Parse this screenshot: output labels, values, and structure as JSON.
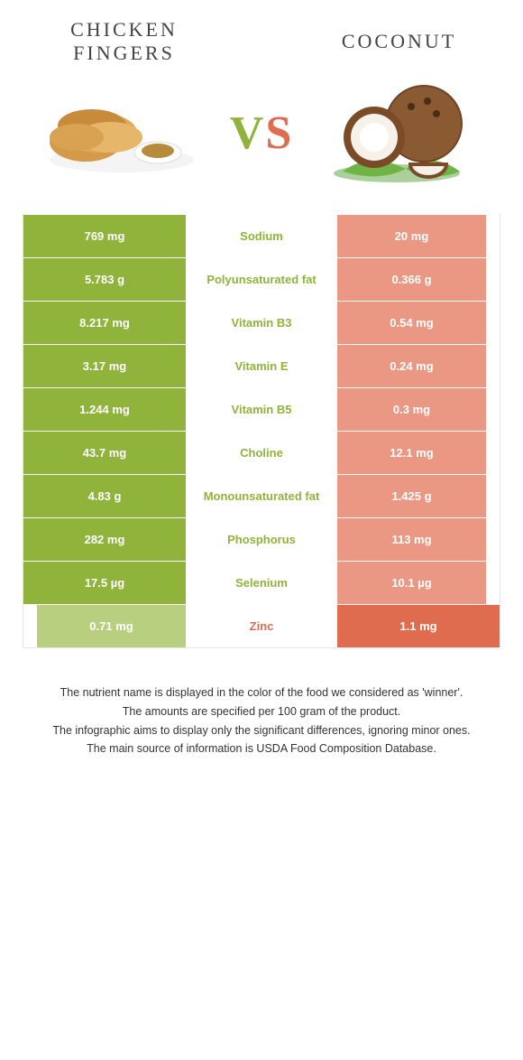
{
  "colors": {
    "green": "#8fb33b",
    "green_light": "#b7cf7f",
    "orange": "#e06c4f",
    "orange_light": "#ea9884"
  },
  "left_title": "Chicken fingers",
  "right_title": "Coconut",
  "vs_text": "VS",
  "rows": [
    {
      "nutrient": "Sodium",
      "left": "769 mg",
      "right": "20 mg",
      "winner": "left"
    },
    {
      "nutrient": "Polyunsaturated fat",
      "left": "5.783 g",
      "right": "0.366 g",
      "winner": "left"
    },
    {
      "nutrient": "Vitamin B3",
      "left": "8.217 mg",
      "right": "0.54 mg",
      "winner": "left"
    },
    {
      "nutrient": "Vitamin E",
      "left": "3.17 mg",
      "right": "0.24 mg",
      "winner": "left"
    },
    {
      "nutrient": "Vitamin B5",
      "left": "1.244 mg",
      "right": "0.3 mg",
      "winner": "left"
    },
    {
      "nutrient": "Choline",
      "left": "43.7 mg",
      "right": "12.1 mg",
      "winner": "left"
    },
    {
      "nutrient": "Monounsaturated fat",
      "left": "4.83 g",
      "right": "1.425 g",
      "winner": "left"
    },
    {
      "nutrient": "Phosphorus",
      "left": "282 mg",
      "right": "113 mg",
      "winner": "left"
    },
    {
      "nutrient": "Selenium",
      "left": "17.5 µg",
      "right": "10.1 µg",
      "winner": "left"
    },
    {
      "nutrient": "Zinc",
      "left": "0.71 mg",
      "right": "1.1 mg",
      "winner": "right"
    }
  ],
  "footnotes": [
    "The nutrient name is displayed in the color of the food we considered as 'winner'.",
    "The amounts are specified per 100 gram of the product.",
    "The infographic aims to display only the significant differences, ignoring minor ones.",
    "The main source of information is USDA Food Composition Database."
  ]
}
